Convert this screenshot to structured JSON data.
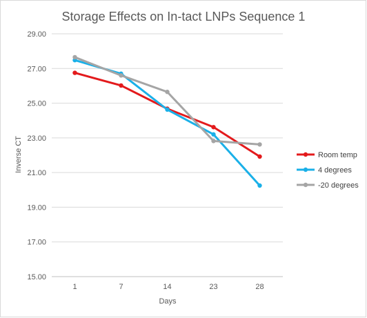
{
  "chart_data": {
    "type": "line",
    "title": "Storage Effects on In-tact LNPs Sequence 1",
    "xlabel": "Days",
    "ylabel": "Inverse CT",
    "categories": [
      "1",
      "7",
      "14",
      "23",
      "28"
    ],
    "ylim": [
      15,
      29
    ],
    "yticks": [
      "15.00",
      "17.00",
      "19.00",
      "21.00",
      "23.00",
      "25.00",
      "27.00",
      "29.00"
    ],
    "grid": true,
    "legend_position": "right",
    "series": [
      {
        "name": "Room temp",
        "color": "#e31a1c",
        "values": [
          26.75,
          26.02,
          24.68,
          23.62,
          21.92
        ]
      },
      {
        "name": "4 degrees",
        "color": "#1ab0e8",
        "values": [
          27.48,
          26.7,
          24.63,
          23.2,
          20.25
        ]
      },
      {
        "name": "-20 degrees",
        "color": "#a5a5a5",
        "values": [
          27.65,
          26.6,
          25.65,
          22.82,
          22.62
        ]
      }
    ]
  }
}
